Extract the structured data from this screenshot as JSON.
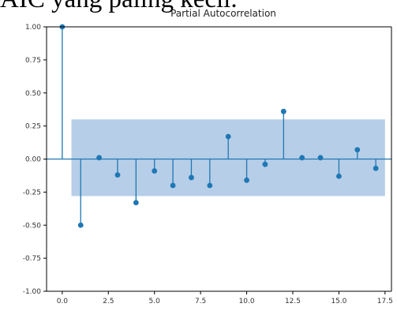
{
  "header_text": "AIC yang paling kecil.",
  "chart_data": {
    "type": "stem",
    "title": "Partial Autocorrelation",
    "xlabel": "",
    "ylabel": "",
    "xlim": [
      -0.85,
      17.85
    ],
    "ylim": [
      -1.0,
      1.0
    ],
    "x_ticks": [
      0.0,
      2.5,
      5.0,
      7.5,
      10.0,
      12.5,
      15.0,
      17.5
    ],
    "x_tick_labels": [
      "0.0",
      "2.5",
      "5.0",
      "7.5",
      "10.0",
      "12.5",
      "15.0",
      "17.5"
    ],
    "y_ticks": [
      -1.0,
      -0.75,
      -0.5,
      -0.25,
      0.0,
      0.25,
      0.5,
      0.75,
      1.0
    ],
    "y_tick_labels": [
      "-1.00",
      "-0.75",
      "-0.50",
      "-0.25",
      "0.00",
      "0.25",
      "0.50",
      "0.75",
      "1.00"
    ],
    "confidence_band": {
      "x_start": 0.5,
      "x_end": 17.5,
      "upper": 0.3,
      "lower": -0.28
    },
    "lags": [
      0,
      1,
      2,
      3,
      4,
      5,
      6,
      7,
      8,
      9,
      10,
      11,
      12,
      13,
      14,
      15,
      16,
      17
    ],
    "values": [
      1.0,
      -0.5,
      0.01,
      -0.12,
      -0.33,
      -0.09,
      -0.2,
      -0.14,
      -0.2,
      0.17,
      -0.16,
      -0.04,
      0.36,
      0.01,
      0.01,
      -0.13,
      0.07,
      -0.07
    ],
    "colors": {
      "stem": "#1f77b4",
      "band": "#a9c6e3",
      "zero_line": "#1f77b4",
      "axes": "#000000"
    }
  }
}
